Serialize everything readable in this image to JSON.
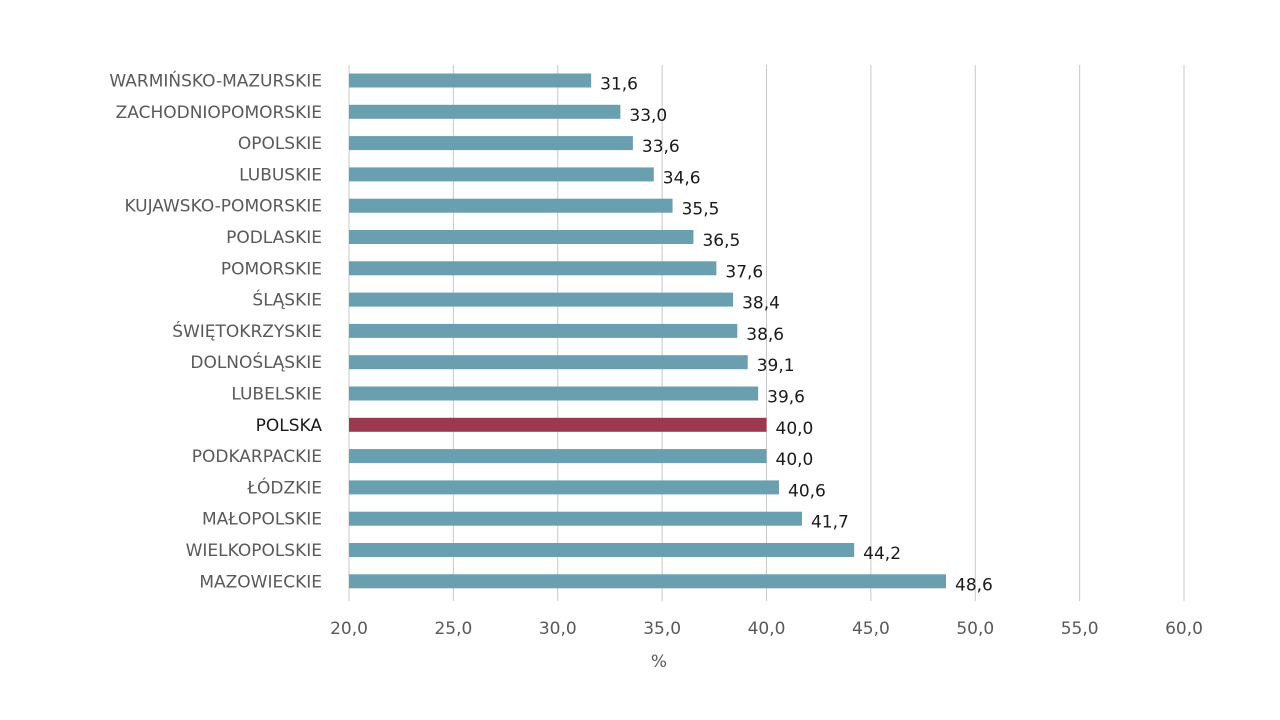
{
  "chart_data": {
    "type": "bar",
    "orientation": "horizontal",
    "categories": [
      "WARMIŃSKO-MAZURSKIE",
      "ZACHODNIOPOMORSKIE",
      "OPOLSKIE",
      "LUBUSKIE",
      "KUJAWSKO-POMORSKIE",
      "PODLASKIE",
      "POMORSKIE",
      "ŚLĄSKIE",
      "ŚWIĘTOKRZYSKIE",
      "DOLNOŚLĄSKIE",
      "LUBELSKIE",
      "POLSKA",
      "PODKARPACKIE",
      "ŁÓDZKIE",
      "MAŁOPOLSKIE",
      "WIELKOPOLSKIE",
      "MAZOWIECKIE"
    ],
    "values": [
      31.6,
      33.0,
      33.6,
      34.6,
      35.5,
      36.5,
      37.6,
      38.4,
      38.6,
      39.1,
      39.6,
      40.0,
      40.0,
      40.6,
      41.7,
      44.2,
      48.6
    ],
    "value_labels": [
      "31,6",
      "33,0",
      "33,6",
      "34,6",
      "35,5",
      "36,5",
      "37,6",
      "38,4",
      "38,6",
      "39,1",
      "39,6",
      "40,0",
      "40,0",
      "40,6",
      "41,7",
      "44,2",
      "48,6"
    ],
    "highlight_category": "POLSKA",
    "xlim": [
      20,
      60
    ],
    "x_ticks": [
      20,
      25,
      30,
      35,
      40,
      45,
      50,
      55,
      60
    ],
    "x_tick_labels": [
      "20,0",
      "25,0",
      "30,0",
      "35,0",
      "40,0",
      "45,0",
      "50,0",
      "55,0",
      "60,0"
    ],
    "xlabel": "%",
    "grid": "vertical",
    "colors": {
      "bar": "#6a9fb0",
      "highlight_bar": "#9b3a4f",
      "grid": "#c8c8c8"
    }
  }
}
